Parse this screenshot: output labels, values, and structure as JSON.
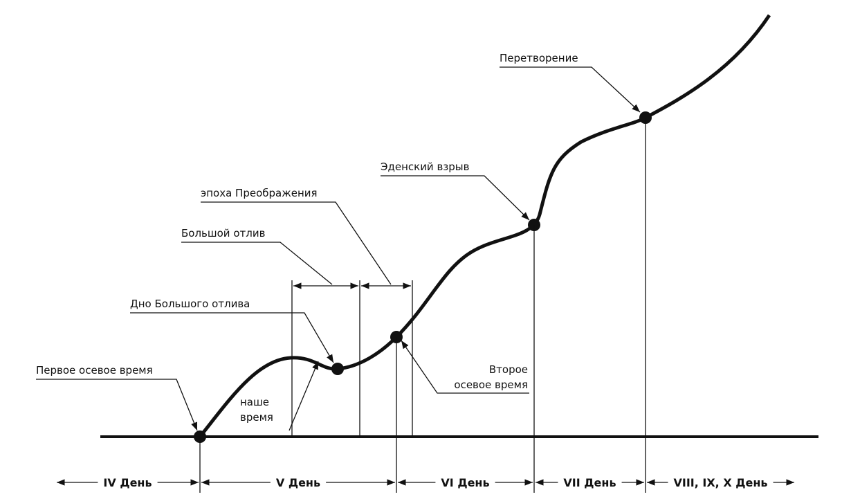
{
  "annotations": {
    "first_axial_time": "Первое осевое время",
    "our_time": [
      "наше",
      "время"
    ],
    "great_ebb_bottom": "Дно Большого отлива",
    "great_ebb": "Большой отлив",
    "transfiguration_epoch": "эпоха Преображения",
    "second_axial_time": [
      "Второе",
      "осевое время"
    ],
    "eden_explosion": "Эденский взрыв",
    "transformation": "Перетворение"
  },
  "days": [
    "IV День",
    "V День",
    "VI День",
    "VII День",
    "VIII, IX, X День"
  ]
}
